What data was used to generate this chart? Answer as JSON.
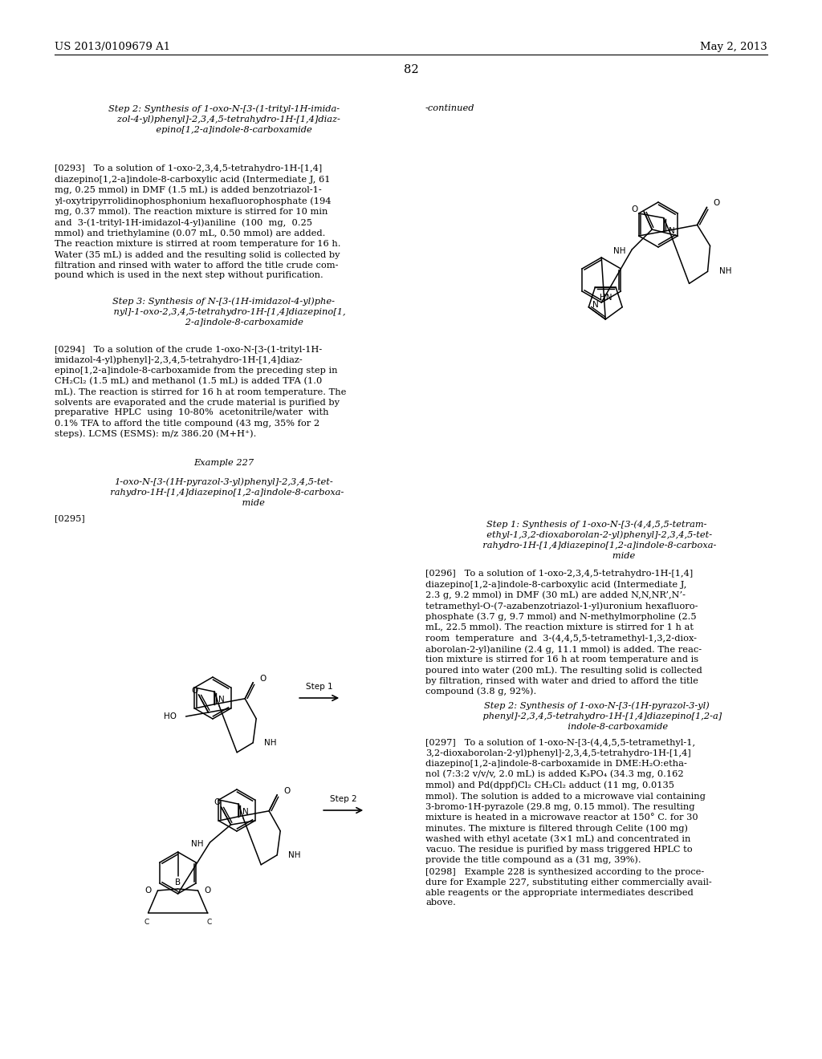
{
  "background_color": "#ffffff",
  "header_left": "US 2013/0109679 A1",
  "header_right": "May 2, 2013",
  "page_number": "82",
  "text_color": "#000000",
  "font_size_small": 8.0,
  "font_size_body": 8.2,
  "font_size_heading": 8.2,
  "font_size_header": 9.5,
  "font_size_pagenum": 10.5
}
